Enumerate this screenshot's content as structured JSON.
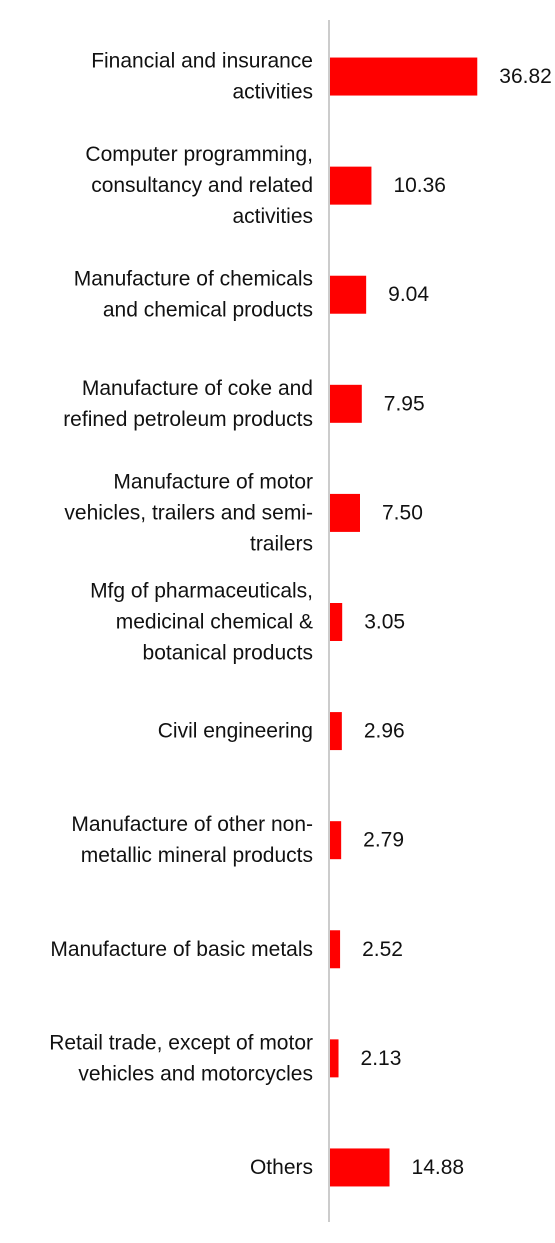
{
  "chart_data": {
    "type": "bar",
    "orientation": "horizontal",
    "categories": [
      "Financial and insurance activities",
      "Computer programming, consultancy and related activities",
      "Manufacture of chemicals and chemical products",
      "Manufacture of coke and refined petroleum products",
      "Manufacture of motor vehicles, trailers and semi-trailers",
      "Mfg of pharmaceuticals, medicinal chemical & botanical products",
      "Civil engineering",
      "Manufacture of other non-metallic mineral products",
      "Manufacture of basic metals",
      "Retail trade, except of motor vehicles and motorcycles",
      "Others"
    ],
    "label_lines": [
      [
        "Financial and insurance",
        "activities"
      ],
      [
        "Computer programming,",
        "consultancy and related",
        "activities"
      ],
      [
        "Manufacture of chemicals",
        "and chemical products"
      ],
      [
        "Manufacture of coke and",
        "refined petroleum products"
      ],
      [
        "Manufacture of motor",
        "vehicles, trailers and semi-",
        "trailers"
      ],
      [
        "Mfg of pharmaceuticals,",
        "medicinal chemical &",
        "botanical products"
      ],
      [
        "Civil engineering"
      ],
      [
        "Manufacture of other non-",
        "metallic mineral products"
      ],
      [
        "Manufacture of basic metals"
      ],
      [
        "Retail trade, except of motor",
        "vehicles and motorcycles"
      ],
      [
        "Others"
      ]
    ],
    "values": [
      36.82,
      10.36,
      9.04,
      7.95,
      7.5,
      3.05,
      2.96,
      2.79,
      2.52,
      2.13,
      14.88
    ],
    "value_labels": [
      "36.82",
      "10.36",
      "9.04",
      "7.95",
      "7.50",
      "3.05",
      "2.96",
      "2.79",
      "2.52",
      "2.13",
      "14.88"
    ],
    "xlim": [
      0,
      40
    ],
    "grid": false,
    "legend": "none",
    "bar_color": "#ff0000",
    "axis_color": "#cccccc"
  }
}
